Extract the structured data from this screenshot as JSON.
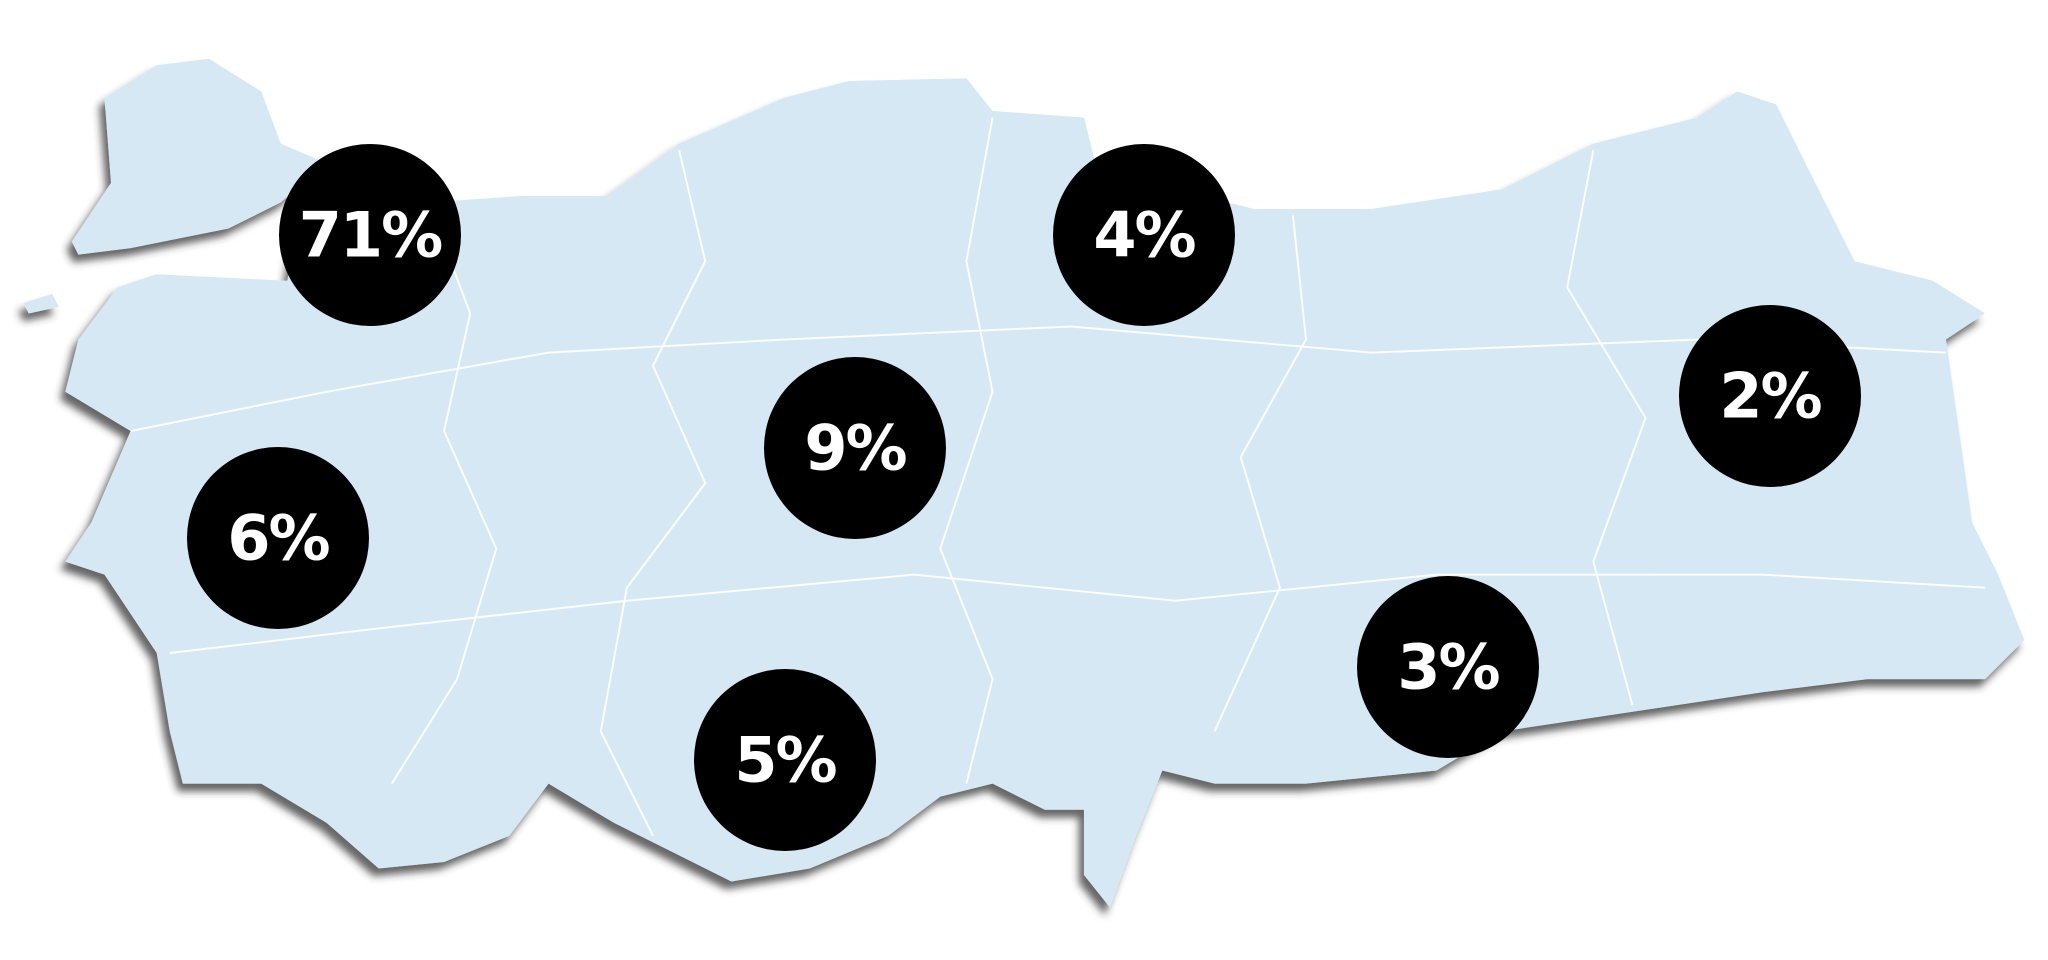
{
  "markers": [
    {
      "label": "71%"
    },
    {
      "label": "4%"
    },
    {
      "label": "9%"
    },
    {
      "label": "6%"
    },
    {
      "label": "2%"
    },
    {
      "label": "3%"
    },
    {
      "label": "5%"
    }
  ]
}
